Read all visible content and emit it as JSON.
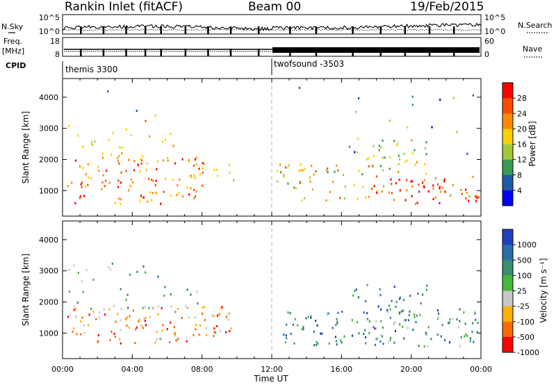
{
  "header": {
    "station": "Rankin Inlet (fitACF)",
    "beam": "Beam 00",
    "date": "19/Feb/2015"
  },
  "top_panels": {
    "nsky_label": "N.Sky",
    "nsearch_label": "N.Search",
    "noise_ticks_left": [
      "10^5",
      "10^0"
    ],
    "noise_ticks_right": [
      "10^5",
      "10^0"
    ],
    "freq_label_1": "Freq.",
    "freq_label_2": "[MHz]",
    "freq_ticks": [
      "18",
      "8"
    ],
    "nave_ticks": [
      "60",
      "0"
    ],
    "nave_label": "Nave",
    "cpid_label": "CPID",
    "cpid_modes": [
      {
        "name": "themis 3300",
        "start_hour": 0,
        "end_hour": 12
      },
      {
        "name": "twofsound -3503",
        "start_hour": 12,
        "end_hour": 24
      }
    ]
  },
  "colorbar_power": {
    "title": "Power [dB]",
    "ticks": [
      "28",
      "24",
      "20",
      "16",
      "12",
      "8",
      "4"
    ],
    "colors": [
      "#ff0000",
      "#ff4b00",
      "#ff8a00",
      "#ffd000",
      "#a2c93a",
      "#3d9a52",
      "#1d5aa8",
      "#0000ff"
    ]
  },
  "colorbar_velocity": {
    "title": "Velocity [m s⁻¹]",
    "ticks": [
      "1000",
      "500",
      "100",
      "25",
      "-25",
      "-100",
      "-500",
      "-1000"
    ],
    "colors": [
      "#1f3fbf",
      "#2a6fa8",
      "#3a8f6e",
      "#44b83c",
      "#c8c8c8",
      "#ffb000",
      "#ff6a00",
      "#ff0000"
    ]
  },
  "axes": {
    "ylabel_power": "Slant Range [km]",
    "ylabel_velocity": "Slant Range [km]",
    "yticks": [
      "1000",
      "2000",
      "3000",
      "4000"
    ],
    "xticks": [
      "00:00",
      "04:00",
      "08:00",
      "12:00",
      "16:00",
      "20:00",
      "00:00"
    ],
    "xlabel": "Time UT"
  },
  "chart_data": [
    {
      "type": "heatmap",
      "title": "Power [dB]",
      "xlabel": "Time UT",
      "ylabel": "Slant Range [km]",
      "x_range_hours": [
        0,
        24
      ],
      "ylim_km": [
        180,
        4600
      ],
      "color_scale_db": [
        0,
        30
      ],
      "scatter_regions": [
        {
          "t0": 0.2,
          "t1": 8.0,
          "r0": 600,
          "r1": 2100,
          "level": 0.72,
          "density": 0.85
        },
        {
          "t0": 8.0,
          "t1": 9.8,
          "r0": 1200,
          "r1": 1900,
          "level": 0.45,
          "density": 0.5
        },
        {
          "t0": 0.3,
          "t1": 7.0,
          "r0": 2000,
          "r1": 3300,
          "level": 0.55,
          "density": 0.25
        },
        {
          "t0": 12.2,
          "t1": 18.0,
          "r0": 700,
          "r1": 1900,
          "level": 0.55,
          "density": 0.65
        },
        {
          "t0": 16.0,
          "t1": 21.0,
          "r0": 1500,
          "r1": 2700,
          "level": 0.5,
          "density": 0.55
        },
        {
          "t0": 17.5,
          "t1": 24.0,
          "r0": 600,
          "r1": 1500,
          "level": 0.85,
          "density": 0.9
        },
        {
          "t0": 13.0,
          "t1": 24.0,
          "r0": 2200,
          "r1": 4400,
          "level": 0.3,
          "density": 0.06
        },
        {
          "t0": 2.0,
          "t1": 7.0,
          "r0": 3300,
          "r1": 4400,
          "level": 0.35,
          "density": 0.05
        }
      ]
    },
    {
      "type": "heatmap",
      "title": "Velocity [m s⁻¹]",
      "xlabel": "Time UT",
      "ylabel": "Slant Range [km]",
      "x_range_hours": [
        0,
        24
      ],
      "ylim_km": [
        180,
        4600
      ],
      "color_scale_ms": [
        -1000,
        1000
      ],
      "scatter_regions": [
        {
          "t0": 0.2,
          "t1": 9.7,
          "r0": 700,
          "r1": 1900,
          "level": 0.3,
          "density": 0.95
        },
        {
          "t0": 0.3,
          "t1": 8.0,
          "r0": 1800,
          "r1": 3300,
          "level": 0.6,
          "density": 0.25
        },
        {
          "t0": 12.5,
          "t1": 24.0,
          "r0": 600,
          "r1": 1800,
          "level": 0.7,
          "density": 0.85
        },
        {
          "t0": 16.5,
          "t1": 21.0,
          "r0": 1700,
          "r1": 2600,
          "level": 0.75,
          "density": 0.6
        },
        {
          "t0": 17.5,
          "t1": 20.0,
          "r0": 900,
          "r1": 1500,
          "level": 0.5,
          "density": 0.7
        }
      ]
    }
  ]
}
